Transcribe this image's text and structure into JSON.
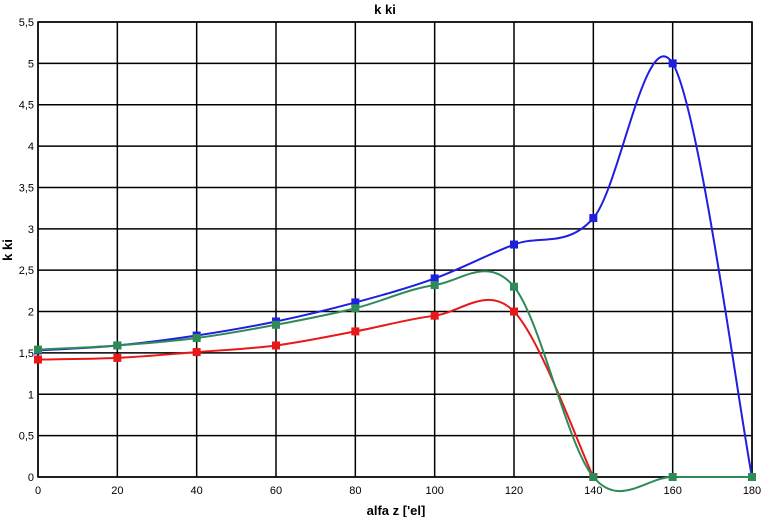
{
  "chart_data": {
    "type": "line",
    "title": "k ki",
    "xlabel": "alfa z ['el]",
    "ylabel": "k ki",
    "xlim": [
      0,
      180
    ],
    "ylim": [
      0,
      5.5
    ],
    "grid": true,
    "legend": "none",
    "x_ticks": [
      "0",
      "20",
      "40",
      "60",
      "80",
      "100",
      "120",
      "140",
      "160",
      "180"
    ],
    "y_ticks": [
      "0",
      "0,5",
      "1",
      "1,5",
      "2",
      "2,5",
      "3",
      "3,5",
      "4",
      "4,5",
      "5",
      "5,5"
    ],
    "x": [
      0,
      20,
      40,
      60,
      80,
      100,
      120,
      140,
      160,
      180
    ],
    "series": [
      {
        "color": "#1f1fe0",
        "values": [
          1.53,
          1.59,
          1.71,
          1.88,
          2.11,
          2.4,
          2.81,
          3.13,
          5.0,
          0.0
        ]
      },
      {
        "color": "#e81818",
        "values": [
          1.42,
          1.44,
          1.51,
          1.59,
          1.76,
          1.95,
          2.0,
          0.0,
          null,
          null
        ]
      },
      {
        "color": "#2e8b57",
        "values": [
          1.54,
          1.59,
          1.68,
          1.84,
          2.04,
          2.32,
          2.3,
          0.0,
          0.0,
          0.0
        ]
      }
    ]
  }
}
